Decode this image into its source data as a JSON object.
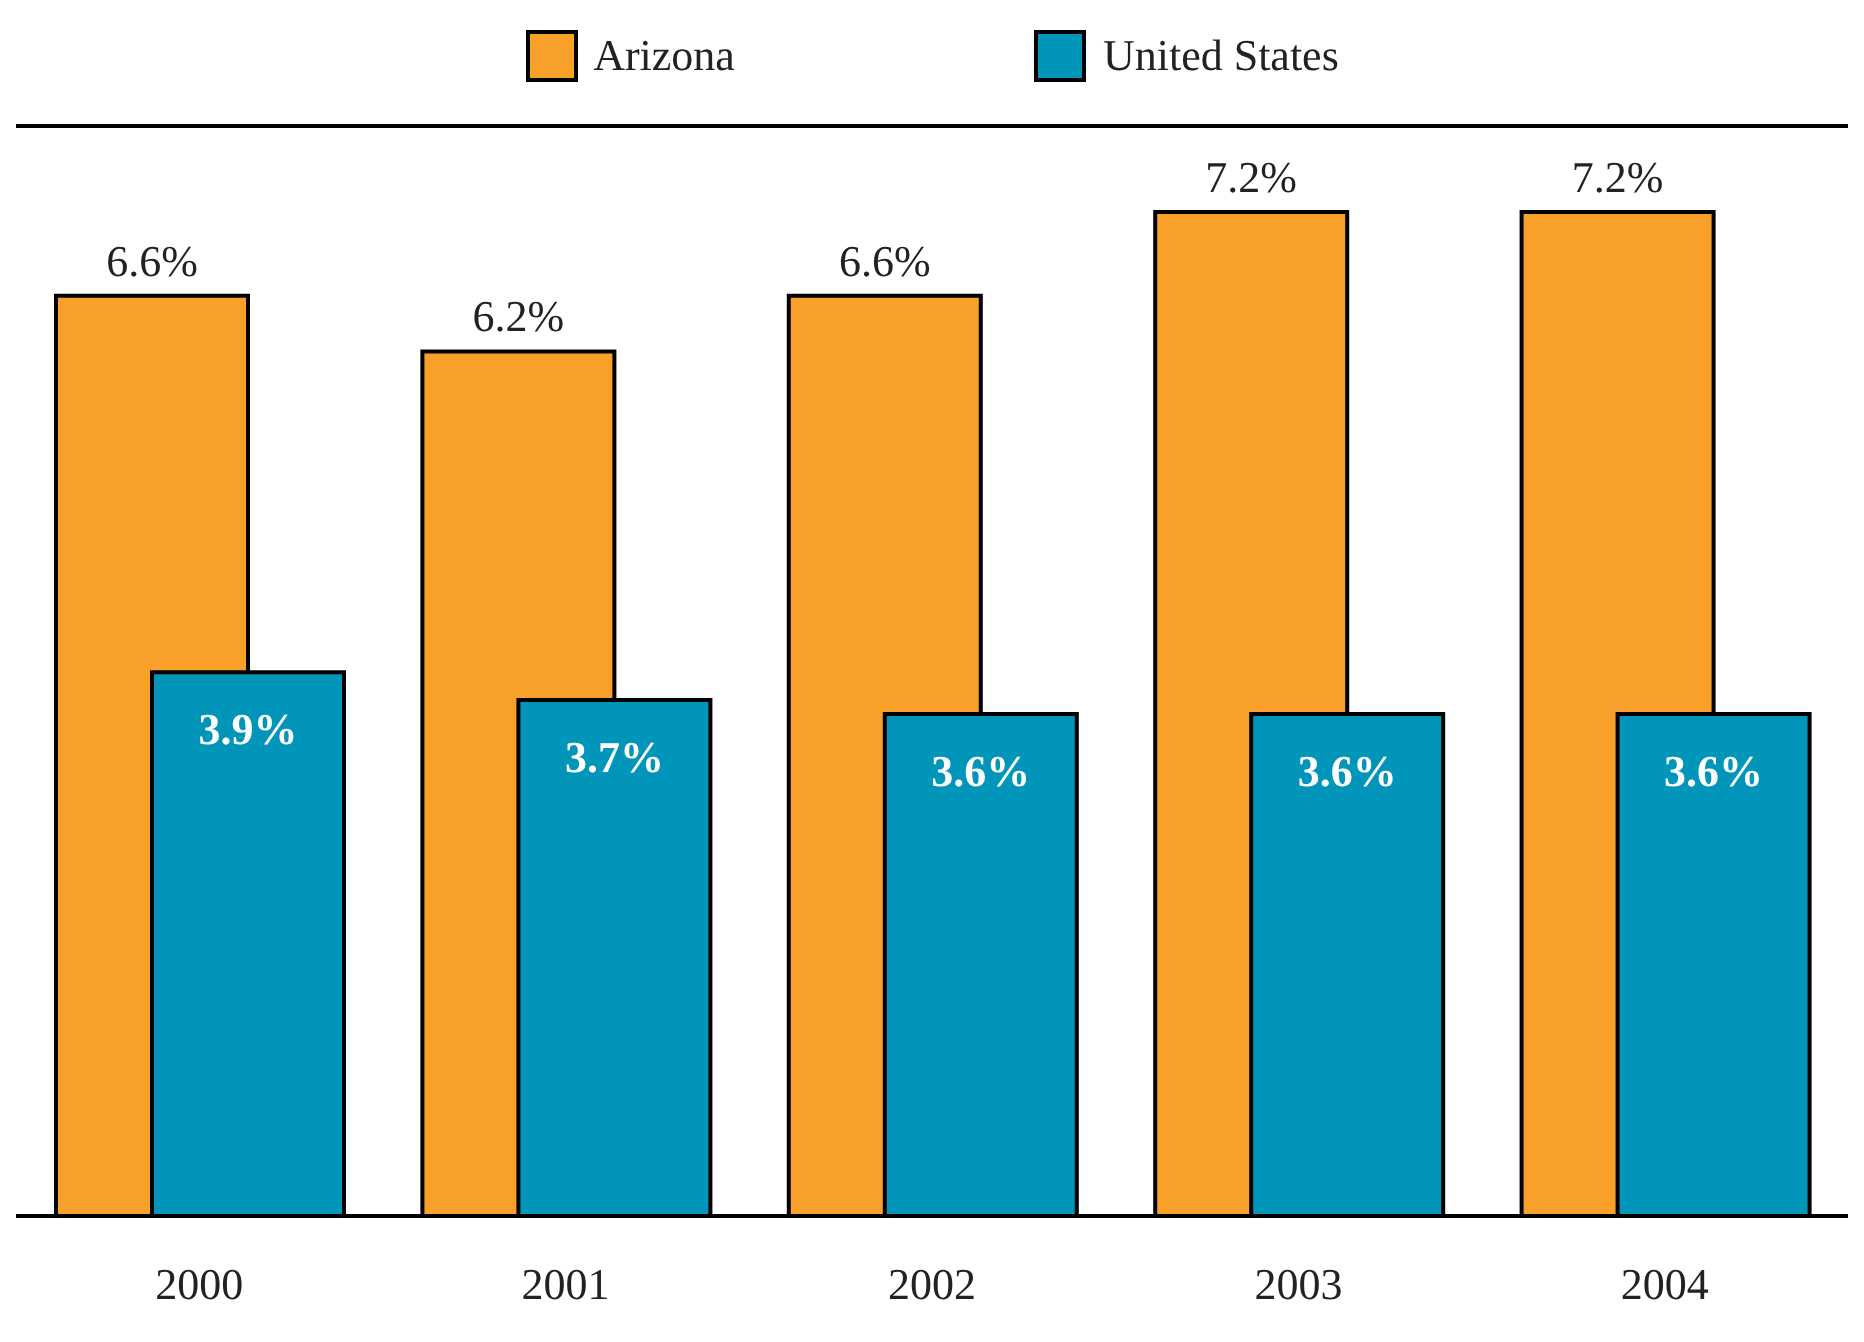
{
  "chart_data": {
    "type": "bar",
    "categories": [
      "2000",
      "2001",
      "2002",
      "2003",
      "2004"
    ],
    "series": [
      {
        "name": "Arizona",
        "color": "#f8a02a",
        "values": [
          6.6,
          6.2,
          6.6,
          7.2,
          7.2
        ],
        "value_labels": [
          "6.6%",
          "6.2%",
          "6.6%",
          "7.2%",
          "7.2%"
        ]
      },
      {
        "name": "United States",
        "color": "#0095b9",
        "values": [
          3.9,
          3.7,
          3.6,
          3.6,
          3.6
        ],
        "value_labels": [
          "3.9%",
          "3.7%",
          "3.6%",
          "3.6%",
          "3.6%"
        ]
      }
    ],
    "legend": "top",
    "grid": false
  }
}
